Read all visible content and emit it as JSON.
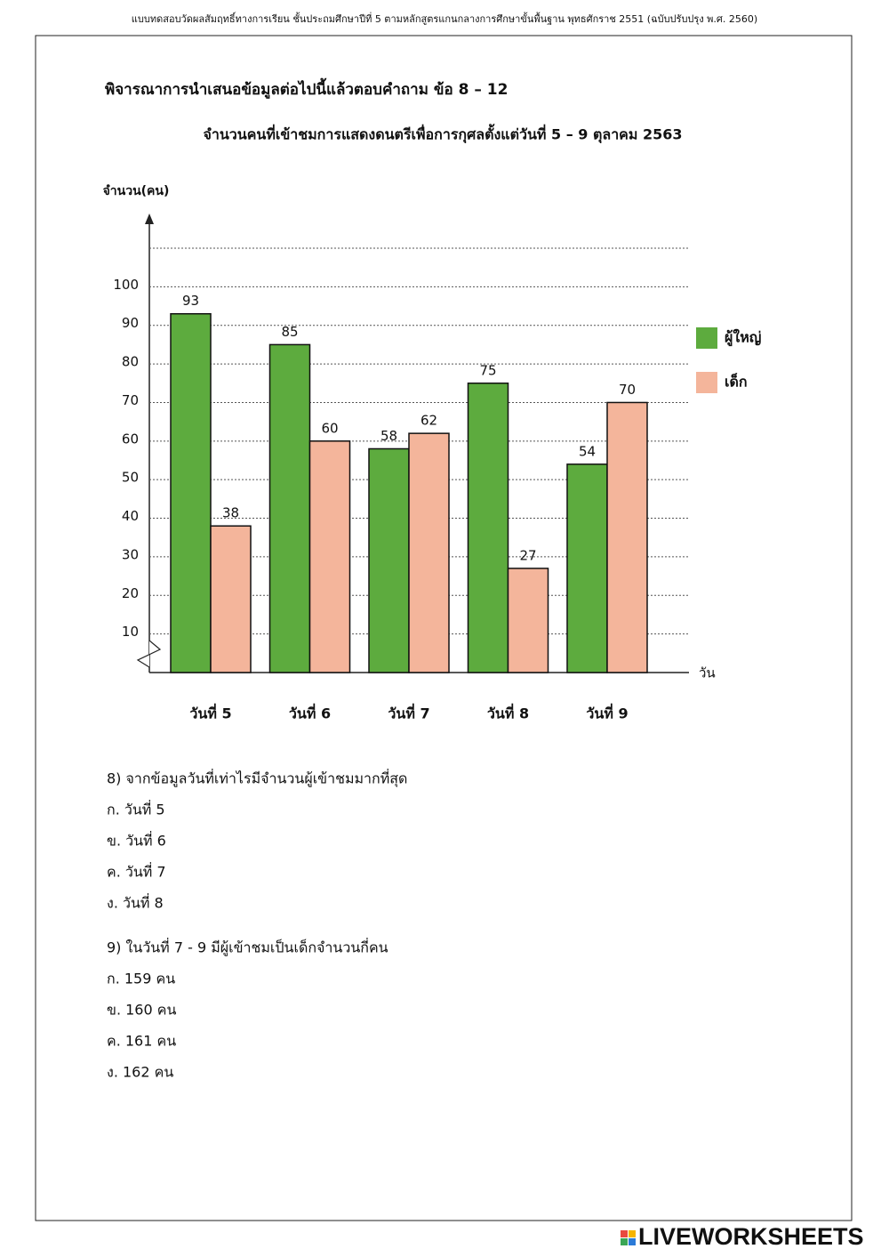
{
  "header": "แบบทดสอบวัดผลสัมฤทธิ์ทางการเรียน ชั้นประถมศึกษาปีที่ 5 ตามหลักสูตรแกนกลางการศึกษาขั้นพื้นฐาน พุทธศักราช 2551 (ฉบับปรับปรุง พ.ศ. 2560)",
  "instruction": "พิจารณาการนำเสนอข้อมูลต่อไปนี้แล้วตอบคำถาม ข้อ 8 – 12",
  "chart_data": {
    "type": "bar",
    "title": "จำนวนคนที่เข้าชมการแสดงดนตรีเพื่อการกุศลตั้งแต่วันที่ 5 – 9 ตุลาคม 2563",
    "y_label": "จำนวน(คน)",
    "x_label": "วัน",
    "categories": [
      "วันที่ 5",
      "วันที่ 6",
      "วันที่ 7",
      "วันที่ 8",
      "วันที่ 9"
    ],
    "series": [
      {
        "name": "ผู้ใหญ่",
        "color": "#5dab3e",
        "values": [
          93,
          85,
          58,
          75,
          54
        ]
      },
      {
        "name": "เด็ก",
        "color": "#f4b59b",
        "values": [
          38,
          60,
          62,
          27,
          70
        ]
      }
    ],
    "ylim": [
      0,
      110
    ],
    "yticks": [
      10,
      20,
      30,
      40,
      50,
      60,
      70,
      80,
      90,
      100
    ],
    "grid": true,
    "legend": "right"
  },
  "questions": [
    {
      "text": "8) จากข้อมูลวันที่เท่าไรมีจำนวนผู้เข้าชมมากที่สุด",
      "options": [
        "ก.  วันที่ 5",
        "ข.  วันที่ 6",
        "ค.  วันที่ 7",
        "ง.  วันที่ 8"
      ]
    },
    {
      "text": "9) ในวันที่ 7 - 9 มีผู้เข้าชมเป็นเด็กจำนวนกี่คน",
      "options": [
        "ก.  159 คน",
        "ข.  160 คน",
        "ค.  161 คน",
        "ง.  162 คน"
      ]
    }
  ],
  "footer": "LIVEWORKSHEETS"
}
